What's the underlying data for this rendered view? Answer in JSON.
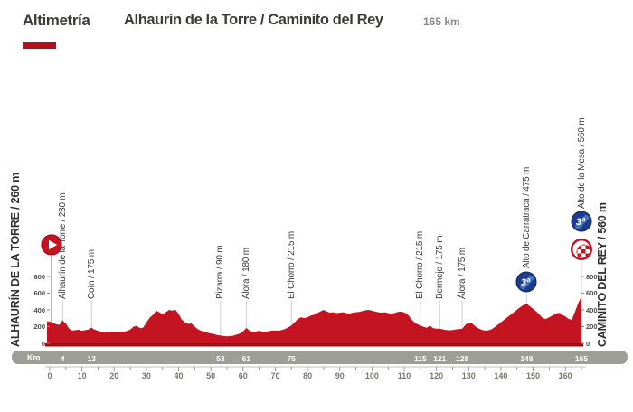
{
  "header": {
    "brand": "Altimetría",
    "title": "Alhaurín de la Torre / Caminito del Rey",
    "distance": "165 km"
  },
  "colors": {
    "profile_red": "#c41421",
    "baseline_dark_red": "#9c1016",
    "accent_red": "#b31119",
    "band_gray": "#9e9e99",
    "text_dark": "#3a3a38",
    "ruler_gray": "#7b7672",
    "connector_gray": "#cfccc8",
    "climb_blue": "#1c3a8e"
  },
  "icons": {
    "start": "play-triangle-in-red-circle",
    "category_label": "3ª",
    "finish": "red-checkered-circle"
  },
  "chart_data": {
    "type": "area",
    "title": "Alhaurín de la Torre / Caminito del Rey",
    "xlabel": "Km",
    "ylabel": "m",
    "x_range": [
      0,
      165
    ],
    "y_range": [
      0,
      800
    ],
    "y_ticks": [
      800,
      600,
      400,
      200,
      0
    ],
    "ruler_ticks": [
      0,
      10,
      20,
      30,
      40,
      50,
      60,
      70,
      80,
      90,
      100,
      110,
      120,
      130,
      140,
      150,
      160
    ],
    "km_band_unit": "Km",
    "km_band_values": [
      4,
      13,
      53,
      61,
      75,
      115,
      121,
      128,
      148,
      165
    ],
    "start_label": "ALHAURÍN DE LA TORRE / 260 m",
    "finish_label": "CAMINITO DEL REY / 560 m",
    "markers": [
      {
        "label": "Alhaurín de la Torre / 230 m",
        "km": 4,
        "type": "town"
      },
      {
        "label": "Coín / 175 m",
        "km": 13,
        "type": "town"
      },
      {
        "label": "Pizarra / 90 m",
        "km": 53,
        "type": "town"
      },
      {
        "label": "Álora / 180 m",
        "km": 61,
        "type": "town"
      },
      {
        "label": "El Chorro / 215 m",
        "km": 75,
        "type": "town"
      },
      {
        "label": "El Chorro / 215 m",
        "km": 115,
        "type": "town"
      },
      {
        "label": "Bermejo / 175 m",
        "km": 121,
        "type": "town"
      },
      {
        "label": "Álora / 175 m",
        "km": 128,
        "type": "town"
      },
      {
        "label": "Alto de Carratraca / 475 m",
        "km": 148,
        "type": "climb",
        "category": "3ª"
      },
      {
        "label": "Alto de la Mesa / 560 m",
        "km": 165,
        "type": "climb-finish",
        "category": "3ª"
      }
    ],
    "profile": [
      [
        0,
        260
      ],
      [
        1,
        245
      ],
      [
        2,
        228
      ],
      [
        3,
        222
      ],
      [
        4,
        278
      ],
      [
        4.5,
        252
      ],
      [
        5,
        238
      ],
      [
        6,
        175
      ],
      [
        7,
        152
      ],
      [
        8,
        158
      ],
      [
        9,
        163
      ],
      [
        10,
        150
      ],
      [
        11,
        158
      ],
      [
        12,
        165
      ],
      [
        13,
        190
      ],
      [
        13.5,
        172
      ],
      [
        14,
        163
      ],
      [
        15,
        150
      ],
      [
        16,
        138
      ],
      [
        17,
        128
      ],
      [
        18,
        135
      ],
      [
        19,
        140
      ],
      [
        20,
        142
      ],
      [
        21,
        136
      ],
      [
        22,
        132
      ],
      [
        23,
        140
      ],
      [
        24,
        148
      ],
      [
        25,
        165
      ],
      [
        26,
        200
      ],
      [
        27,
        210
      ],
      [
        28,
        182
      ],
      [
        29,
        188
      ],
      [
        30,
        250
      ],
      [
        31,
        305
      ],
      [
        32,
        340
      ],
      [
        33,
        392
      ],
      [
        34,
        372
      ],
      [
        35,
        348
      ],
      [
        36,
        372
      ],
      [
        37,
        400
      ],
      [
        38,
        392
      ],
      [
        39,
        402
      ],
      [
        40,
        352
      ],
      [
        41,
        282
      ],
      [
        42,
        252
      ],
      [
        43,
        232
      ],
      [
        44,
        238
      ],
      [
        45,
        200
      ],
      [
        46,
        168
      ],
      [
        47,
        150
      ],
      [
        48,
        138
      ],
      [
        49,
        126
      ],
      [
        50,
        118
      ],
      [
        51,
        110
      ],
      [
        52,
        100
      ],
      [
        53,
        95
      ],
      [
        54,
        88
      ],
      [
        55,
        84
      ],
      [
        56,
        86
      ],
      [
        57,
        92
      ],
      [
        58,
        105
      ],
      [
        59,
        118
      ],
      [
        60,
        142
      ],
      [
        61,
        185
      ],
      [
        62,
        152
      ],
      [
        63,
        136
      ],
      [
        64,
        142
      ],
      [
        65,
        150
      ],
      [
        66,
        140
      ],
      [
        67,
        136
      ],
      [
        68,
        146
      ],
      [
        69,
        152
      ],
      [
        70,
        155
      ],
      [
        71,
        150
      ],
      [
        72,
        160
      ],
      [
        73,
        172
      ],
      [
        74,
        190
      ],
      [
        75,
        215
      ],
      [
        76,
        252
      ],
      [
        77,
        292
      ],
      [
        78,
        312
      ],
      [
        79,
        302
      ],
      [
        80,
        312
      ],
      [
        81,
        332
      ],
      [
        82,
        342
      ],
      [
        83,
        362
      ],
      [
        84,
        382
      ],
      [
        85,
        400
      ],
      [
        86,
        380
      ],
      [
        87,
        366
      ],
      [
        88,
        372
      ],
      [
        89,
        362
      ],
      [
        90,
        366
      ],
      [
        91,
        372
      ],
      [
        92,
        362
      ],
      [
        93,
        356
      ],
      [
        94,
        366
      ],
      [
        95,
        372
      ],
      [
        96,
        376
      ],
      [
        97,
        386
      ],
      [
        98,
        396
      ],
      [
        99,
        400
      ],
      [
        100,
        390
      ],
      [
        101,
        380
      ],
      [
        102,
        372
      ],
      [
        103,
        366
      ],
      [
        104,
        372
      ],
      [
        105,
        362
      ],
      [
        106,
        356
      ],
      [
        107,
        362
      ],
      [
        108,
        376
      ],
      [
        109,
        380
      ],
      [
        110,
        370
      ],
      [
        111,
        350
      ],
      [
        112,
        300
      ],
      [
        113,
        258
      ],
      [
        114,
        230
      ],
      [
        115,
        215
      ],
      [
        116,
        198
      ],
      [
        117,
        186
      ],
      [
        118,
        212
      ],
      [
        119,
        182
      ],
      [
        120,
        176
      ],
      [
        121,
        175
      ],
      [
        122,
        166
      ],
      [
        123,
        160
      ],
      [
        124,
        156
      ],
      [
        125,
        160
      ],
      [
        126,
        166
      ],
      [
        127,
        170
      ],
      [
        128,
        176
      ],
      [
        129,
        222
      ],
      [
        130,
        250
      ],
      [
        131,
        240
      ],
      [
        132,
        205
      ],
      [
        133,
        180
      ],
      [
        134,
        162
      ],
      [
        135,
        152
      ],
      [
        136,
        156
      ],
      [
        137,
        166
      ],
      [
        138,
        192
      ],
      [
        139,
        222
      ],
      [
        140,
        252
      ],
      [
        141,
        282
      ],
      [
        142,
        312
      ],
      [
        143,
        342
      ],
      [
        144,
        372
      ],
      [
        145,
        402
      ],
      [
        146,
        432
      ],
      [
        147,
        456
      ],
      [
        148,
        475
      ],
      [
        149,
        442
      ],
      [
        150,
        412
      ],
      [
        151,
        382
      ],
      [
        152,
        342
      ],
      [
        153,
        302
      ],
      [
        154,
        292
      ],
      [
        155,
        312
      ],
      [
        156,
        332
      ],
      [
        157,
        356
      ],
      [
        158,
        366
      ],
      [
        159,
        342
      ],
      [
        160,
        322
      ],
      [
        161,
        292
      ],
      [
        162,
        282
      ],
      [
        163,
        380
      ],
      [
        164,
        480
      ],
      [
        165,
        560
      ]
    ]
  }
}
